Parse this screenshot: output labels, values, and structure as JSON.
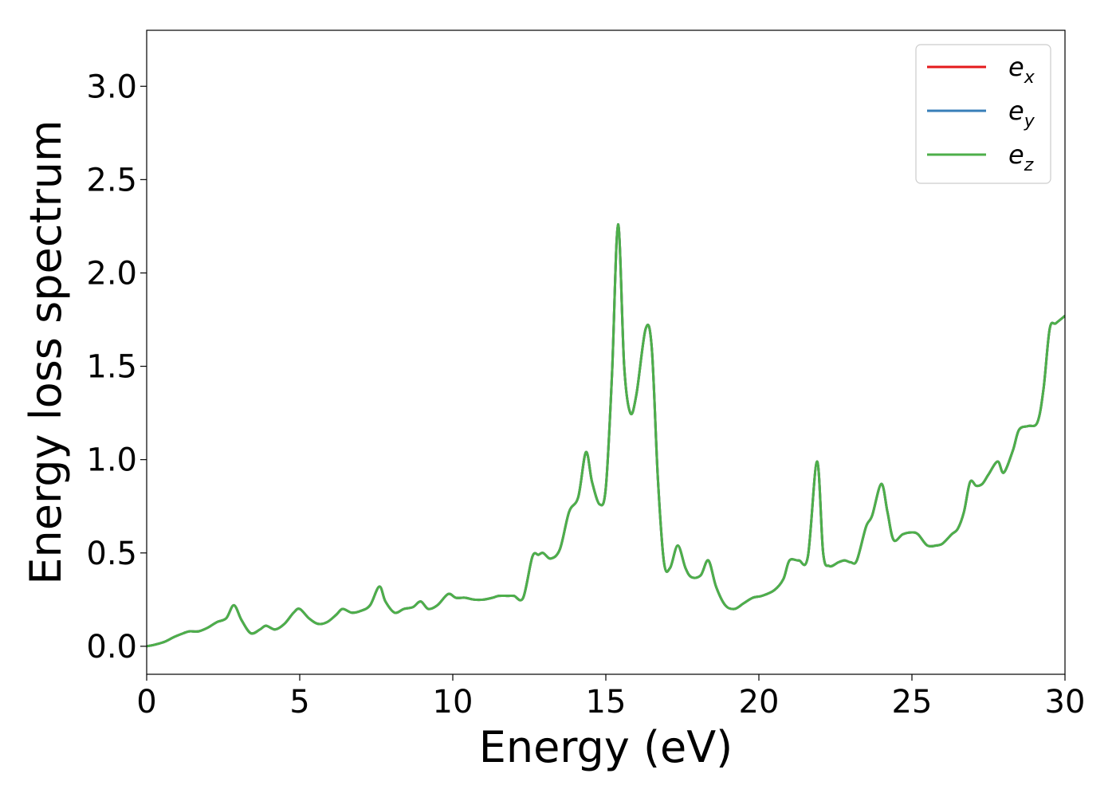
{
  "chart_data": {
    "type": "line",
    "title": "",
    "xlabel": "Energy (eV)",
    "ylabel": "Energy loss spectrum",
    "xlim": [
      0,
      30
    ],
    "ylim": [
      -0.15,
      3.3
    ],
    "xticks": [
      0,
      5,
      10,
      15,
      20,
      25,
      30
    ],
    "xtick_labels": [
      "0",
      "5",
      "10",
      "15",
      "20",
      "25",
      "30"
    ],
    "yticks": [
      0.0,
      0.5,
      1.0,
      1.5,
      2.0,
      2.5,
      3.0
    ],
    "ytick_labels": [
      "0.0",
      "0.5",
      "1.0",
      "1.5",
      "2.0",
      "2.5",
      "3.0"
    ],
    "grid": false,
    "legend_position": "top-right",
    "x": [
      0.0,
      0.3,
      0.6,
      0.9,
      1.2,
      1.4,
      1.7,
      2.0,
      2.3,
      2.6,
      2.85,
      3.1,
      3.4,
      3.7,
      3.9,
      4.2,
      4.5,
      4.8,
      5.0,
      5.3,
      5.6,
      5.9,
      6.2,
      6.4,
      6.7,
      7.0,
      7.3,
      7.6,
      7.8,
      8.1,
      8.4,
      8.7,
      8.95,
      9.2,
      9.5,
      9.85,
      10.1,
      10.4,
      10.7,
      11.0,
      11.3,
      11.5,
      11.8,
      12.0,
      12.3,
      12.6,
      12.8,
      12.95,
      13.2,
      13.5,
      13.8,
      14.1,
      14.35,
      14.55,
      14.8,
      15.0,
      15.2,
      15.4,
      15.6,
      15.8,
      16.0,
      16.3,
      16.5,
      16.7,
      16.9,
      17.1,
      17.35,
      17.6,
      17.8,
      18.1,
      18.35,
      18.6,
      18.9,
      19.2,
      19.5,
      19.8,
      20.1,
      20.5,
      20.8,
      21.0,
      21.3,
      21.6,
      21.9,
      22.1,
      22.3,
      22.6,
      22.8,
      23.0,
      23.2,
      23.5,
      23.7,
      24.0,
      24.2,
      24.4,
      24.7,
      25.0,
      25.2,
      25.5,
      25.8,
      26.0,
      26.3,
      26.5,
      26.7,
      26.9,
      27.1,
      27.3,
      27.5,
      27.8,
      28.0,
      28.3,
      28.5,
      28.8,
      29.1,
      29.3,
      29.5,
      29.7,
      30.0
    ],
    "series": [
      {
        "name": "e_x",
        "name_base": "e",
        "name_sub": "x",
        "color": "#e41a1c",
        "values": [
          0.0,
          0.01,
          0.025,
          0.05,
          0.07,
          0.08,
          0.08,
          0.1,
          0.13,
          0.15,
          0.22,
          0.14,
          0.07,
          0.09,
          0.11,
          0.09,
          0.12,
          0.18,
          0.2,
          0.15,
          0.12,
          0.13,
          0.17,
          0.2,
          0.18,
          0.19,
          0.22,
          0.32,
          0.24,
          0.18,
          0.2,
          0.21,
          0.24,
          0.2,
          0.22,
          0.28,
          0.26,
          0.26,
          0.25,
          0.25,
          0.26,
          0.27,
          0.27,
          0.27,
          0.26,
          0.48,
          0.49,
          0.5,
          0.47,
          0.52,
          0.72,
          0.8,
          1.04,
          0.88,
          0.76,
          0.85,
          1.45,
          2.26,
          1.5,
          1.25,
          1.35,
          1.7,
          1.6,
          0.9,
          0.45,
          0.42,
          0.54,
          0.42,
          0.37,
          0.38,
          0.46,
          0.32,
          0.22,
          0.2,
          0.23,
          0.26,
          0.27,
          0.3,
          0.36,
          0.46,
          0.46,
          0.48,
          0.99,
          0.5,
          0.43,
          0.45,
          0.46,
          0.45,
          0.46,
          0.64,
          0.7,
          0.87,
          0.72,
          0.57,
          0.6,
          0.61,
          0.6,
          0.54,
          0.54,
          0.55,
          0.6,
          0.63,
          0.72,
          0.88,
          0.86,
          0.87,
          0.92,
          0.99,
          0.93,
          1.05,
          1.16,
          1.18,
          1.2,
          1.38,
          1.7,
          1.73,
          1.77
        ]
      },
      {
        "name": "e_y",
        "name_base": "e",
        "name_sub": "y",
        "color": "#377eb8",
        "values": [
          0.0,
          0.01,
          0.025,
          0.05,
          0.07,
          0.08,
          0.08,
          0.1,
          0.13,
          0.15,
          0.22,
          0.14,
          0.07,
          0.09,
          0.11,
          0.09,
          0.12,
          0.18,
          0.2,
          0.15,
          0.12,
          0.13,
          0.17,
          0.2,
          0.18,
          0.19,
          0.22,
          0.32,
          0.24,
          0.18,
          0.2,
          0.21,
          0.24,
          0.2,
          0.22,
          0.28,
          0.26,
          0.26,
          0.25,
          0.25,
          0.26,
          0.27,
          0.27,
          0.27,
          0.26,
          0.48,
          0.49,
          0.5,
          0.47,
          0.52,
          0.72,
          0.8,
          1.04,
          0.88,
          0.76,
          0.85,
          1.45,
          2.26,
          1.5,
          1.25,
          1.35,
          1.7,
          1.6,
          0.9,
          0.45,
          0.42,
          0.54,
          0.42,
          0.37,
          0.38,
          0.46,
          0.32,
          0.22,
          0.2,
          0.23,
          0.26,
          0.27,
          0.3,
          0.36,
          0.46,
          0.46,
          0.48,
          0.99,
          0.5,
          0.43,
          0.45,
          0.46,
          0.45,
          0.46,
          0.64,
          0.7,
          0.87,
          0.72,
          0.57,
          0.6,
          0.61,
          0.6,
          0.54,
          0.54,
          0.55,
          0.6,
          0.63,
          0.72,
          0.88,
          0.86,
          0.87,
          0.92,
          0.99,
          0.93,
          1.05,
          1.16,
          1.18,
          1.2,
          1.38,
          1.7,
          1.73,
          1.77
        ]
      },
      {
        "name": "e_z",
        "name_base": "e",
        "name_sub": "z",
        "color": "#4daf4a",
        "values": [
          0.0,
          0.01,
          0.025,
          0.05,
          0.07,
          0.08,
          0.08,
          0.1,
          0.13,
          0.15,
          0.22,
          0.14,
          0.07,
          0.09,
          0.11,
          0.09,
          0.12,
          0.18,
          0.2,
          0.15,
          0.12,
          0.13,
          0.17,
          0.2,
          0.18,
          0.19,
          0.22,
          0.32,
          0.24,
          0.18,
          0.2,
          0.21,
          0.24,
          0.2,
          0.22,
          0.28,
          0.26,
          0.26,
          0.25,
          0.25,
          0.26,
          0.27,
          0.27,
          0.27,
          0.26,
          0.48,
          0.49,
          0.5,
          0.47,
          0.52,
          0.72,
          0.8,
          1.04,
          0.88,
          0.76,
          0.85,
          1.45,
          2.26,
          1.5,
          1.25,
          1.35,
          1.7,
          1.6,
          0.9,
          0.45,
          0.42,
          0.54,
          0.42,
          0.37,
          0.38,
          0.46,
          0.32,
          0.22,
          0.2,
          0.23,
          0.26,
          0.27,
          0.3,
          0.36,
          0.46,
          0.46,
          0.48,
          0.99,
          0.5,
          0.43,
          0.45,
          0.46,
          0.45,
          0.46,
          0.64,
          0.7,
          0.87,
          0.72,
          0.57,
          0.6,
          0.61,
          0.6,
          0.54,
          0.54,
          0.55,
          0.6,
          0.63,
          0.72,
          0.88,
          0.86,
          0.87,
          0.92,
          0.99,
          0.93,
          1.05,
          1.16,
          1.18,
          1.2,
          1.38,
          1.7,
          1.73,
          1.77
        ]
      }
    ]
  }
}
